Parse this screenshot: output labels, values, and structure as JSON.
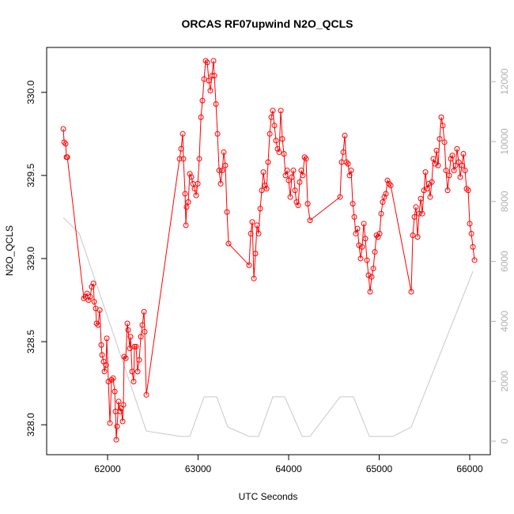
{
  "chart_data": {
    "type": "line",
    "title": "ORCAS RF07upwind N2O_QCLS",
    "xlabel": "UTC Seconds",
    "ylabel": "N2O_QCLS",
    "xlim": [
      61327,
      66227
    ],
    "ylim": [
      327.82,
      330.27
    ],
    "y2lim": [
      -450,
      13140
    ],
    "xticks": [
      62000,
      63000,
      64000,
      65000,
      66000
    ],
    "yticks": [
      {
        "value": 328,
        "label": "328.0"
      },
      328.5,
      {
        "value": 329,
        "label": "329.0"
      },
      329.5,
      {
        "value": 330,
        "label": "330.0"
      }
    ],
    "y2ticks": [
      0,
      2000,
      4000,
      6000,
      8000,
      10000,
      12000
    ],
    "series": [
      {
        "color": "#ff0000",
        "markers": true,
        "x": [
          61511,
          61520,
          61537,
          61546,
          61555,
          61738,
          61755,
          61773,
          61790,
          61808,
          61825,
          61843,
          61852,
          61869,
          61878,
          61895,
          61913,
          61930,
          61939,
          61956,
          61965,
          61983,
          61991,
          62009,
          62026,
          62044,
          62061,
          62079,
          62087,
          62096,
          62105,
          62122,
          62140,
          62148,
          62166,
          62175,
          62183,
          62201,
          62218,
          62227,
          62245,
          62253,
          62271,
          62288,
          62297,
          62314,
          62332,
          62349,
          62367,
          62384,
          62402,
          62410,
          62428,
          62795,
          62812,
          62830,
          62838,
          62856,
          62865,
          62873,
          62891,
          62908,
          62926,
          62943,
          62961,
          62978,
          62996,
          63013,
          63031,
          63048,
          63066,
          63083,
          63101,
          63118,
          63135,
          63153,
          63170,
          63179,
          63197,
          63214,
          63232,
          63249,
          63266,
          63284,
          63301,
          63319,
          63336,
          63563,
          63581,
          63598,
          63616,
          63633,
          63651,
          63668,
          63686,
          63703,
          63721,
          63738,
          63756,
          63773,
          63791,
          63808,
          63825,
          63843,
          63860,
          63878,
          63895,
          63913,
          63930,
          63948,
          63965,
          63983,
          64000,
          64018,
          64035,
          64052,
          64070,
          64087,
          64105,
          64122,
          64140,
          64157,
          64175,
          64192,
          64210,
          64236,
          64568,
          64585,
          64603,
          64620,
          64638,
          64655,
          64673,
          64690,
          64708,
          64725,
          64742,
          64760,
          64777,
          64795,
          64812,
          64830,
          64847,
          64865,
          64882,
          64900,
          64917,
          64935,
          64952,
          64970,
          64987,
          65005,
          65022,
          65039,
          65057,
          65074,
          65092,
          65109,
          65127,
          65354,
          65371,
          65389,
          65406,
          65424,
          65441,
          65459,
          65476,
          65494,
          65511,
          65529,
          65546,
          65563,
          65581,
          65598,
          65616,
          65633,
          65651,
          65668,
          65686,
          65703,
          65721,
          65738,
          65756,
          65773,
          65791,
          65808,
          65826,
          65843,
          65860,
          65878,
          65895,
          65913,
          65930,
          65948,
          65965,
          65983,
          66000,
          66018,
          66035,
          66053
        ],
        "values": [
          329.78,
          329.7,
          329.69,
          329.61,
          329.61,
          328.76,
          328.77,
          328.79,
          328.75,
          328.77,
          328.83,
          328.85,
          328.74,
          328.7,
          328.61,
          328.6,
          328.69,
          328.48,
          328.42,
          328.38,
          328.32,
          328.36,
          328.52,
          328.26,
          328.01,
          328.27,
          328.28,
          328.2,
          328.08,
          327.91,
          327.99,
          328.14,
          328.08,
          328.1,
          328.02,
          328.12,
          328.41,
          328.4,
          328.61,
          328.57,
          328.46,
          328.53,
          328.32,
          328.26,
          328.47,
          328.47,
          328.32,
          328.39,
          328.53,
          328.6,
          328.68,
          328.56,
          328.18,
          329.6,
          329.66,
          329.75,
          329.6,
          329.39,
          329.2,
          329.31,
          329.34,
          329.51,
          329.49,
          329.45,
          329.42,
          329.38,
          329.45,
          329.6,
          329.85,
          329.95,
          330.08,
          330.19,
          330.18,
          330.07,
          330.01,
          330.1,
          330.19,
          330.1,
          329.93,
          329.75,
          329.53,
          329.45,
          329.53,
          329.64,
          329.56,
          329.28,
          329.09,
          328.96,
          329.15,
          329.22,
          328.88,
          329.03,
          329.2,
          329.15,
          329.3,
          329.41,
          329.52,
          329.44,
          329.42,
          329.58,
          329.75,
          329.85,
          329.89,
          329.8,
          329.71,
          329.66,
          329.64,
          329.89,
          329.72,
          329.63,
          329.5,
          329.53,
          329.47,
          329.37,
          329.49,
          329.53,
          329.41,
          329.34,
          329.32,
          329.46,
          329.53,
          329.5,
          329.61,
          329.6,
          329.33,
          329.23,
          329.37,
          329.58,
          329.64,
          329.74,
          329.58,
          329.57,
          329.5,
          329.53,
          329.33,
          329.25,
          329.15,
          329.18,
          329.08,
          329.0,
          329.07,
          329.21,
          329.12,
          328.99,
          328.9,
          328.8,
          328.89,
          328.94,
          329.04,
          329.14,
          329.13,
          329.15,
          329.27,
          329.34,
          329.37,
          329.39,
          329.47,
          329.45,
          329.44,
          328.8,
          329.14,
          329.25,
          329.31,
          329.13,
          329.27,
          329.36,
          329.27,
          329.41,
          329.52,
          329.42,
          329.45,
          329.37,
          329.46,
          329.6,
          329.57,
          329.65,
          329.56,
          329.72,
          329.85,
          329.8,
          329.7,
          329.53,
          329.41,
          329.5,
          329.6,
          329.62,
          329.53,
          329.56,
          329.66,
          329.58,
          329.49,
          329.56,
          329.63,
          329.53,
          329.42,
          329.41,
          329.21,
          329.15,
          329.07,
          328.99
        ]
      },
      {
        "color": "#c8c8c8",
        "axis": "y2",
        "markers": false,
        "x": [
          61511,
          61686,
          62428,
          62804,
          62908,
          63066,
          63205,
          63328,
          63563,
          63668,
          63825,
          63956,
          64149,
          64236,
          64568,
          64716,
          64891,
          65153,
          65354,
          66035
        ],
        "values": [
          7460,
          6940,
          340,
          160,
          160,
          1480,
          1480,
          475,
          160,
          160,
          1480,
          1480,
          160,
          160,
          1480,
          1480,
          160,
          160,
          475,
          5670
        ]
      }
    ]
  }
}
